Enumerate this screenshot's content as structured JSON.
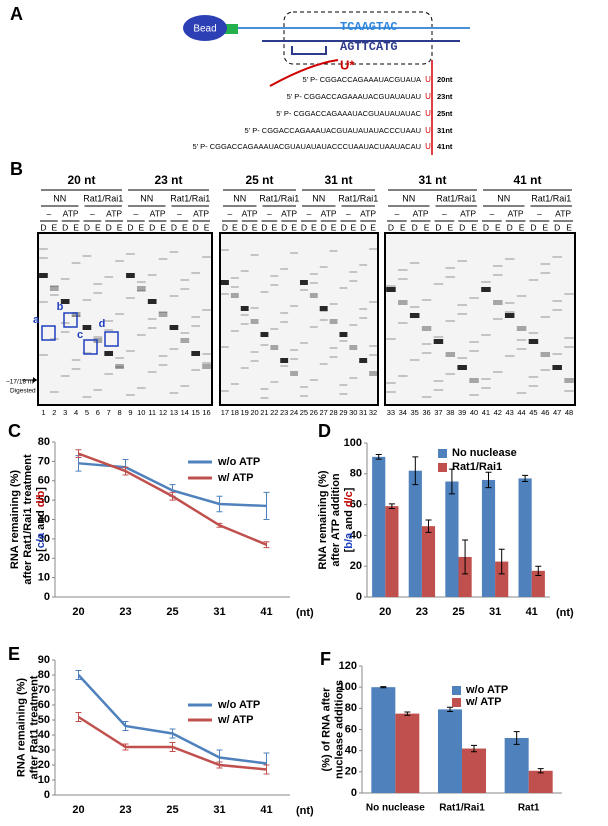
{
  "panel_a": {
    "label": "A",
    "bead": "Bead",
    "top_strand": "TCAAGTAC",
    "bottom_strand": "AGTTCATG",
    "label_nt": "U*",
    "sequences": [
      {
        "seq": "5' P- CGGACCAGAAAUACGUAUA",
        "end": "U",
        "length": "20nt"
      },
      {
        "seq": "5' P- CGGACCAGAAAUACGUAUAUAU",
        "end": "U",
        "length": "23nt"
      },
      {
        "seq": "5' P- CGGACCAGAAAUACGUAUAUAUAC",
        "end": "U",
        "length": "25nt"
      },
      {
        "seq": "5' P- CGGACCAGAAAUACGUAUAUAUACCCUAAU",
        "end": "U",
        "length": "31nt"
      },
      {
        "seq": "5' P- CGGACCAGAAAUACGUAUAUAUACCCUAAUACUAAUACAU",
        "end": "U",
        "length": "41nt"
      }
    ]
  },
  "panel_b": {
    "label": "B",
    "gels": [
      {
        "groups": [
          {
            "title": "20 nt",
            "subgroups": [
              {
                "name": "NN",
                "conditions": [
                  "–",
                  "ATP"
                ]
              },
              {
                "name": "Rat1/Rai1",
                "conditions": [
                  "–",
                  "ATP"
                ]
              }
            ]
          },
          {
            "title": "23 nt",
            "subgroups": [
              {
                "name": "NN",
                "conditions": [
                  "–",
                  "ATP"
                ]
              },
              {
                "name": "Rat1/Rai1",
                "conditions": [
                  "–",
                  "ATP"
                ]
              }
            ]
          }
        ]
      },
      {
        "groups": [
          {
            "title": "25 nt",
            "subgroups": [
              {
                "name": "NN",
                "conditions": [
                  "–",
                  "ATP"
                ]
              },
              {
                "name": "Rat1/Rai1",
                "conditions": [
                  "–",
                  "ATP"
                ]
              }
            ]
          },
          {
            "title": "31 nt",
            "subgroups": [
              {
                "name": "NN",
                "conditions": [
                  "–",
                  "ATP"
                ]
              },
              {
                "name": "Rat1/Rai1",
                "conditions": [
                  "–",
                  "ATP"
                ]
              }
            ]
          }
        ]
      },
      {
        "groups": [
          {
            "title": "31 nt",
            "subgroups": [
              {
                "name": "NN",
                "conditions": [
                  "–",
                  "ATP"
                ]
              },
              {
                "name": "Rat1/Rai1",
                "conditions": [
                  "–",
                  "ATP"
                ]
              }
            ]
          },
          {
            "title": "41 nt",
            "subgroups": [
              {
                "name": "NN",
                "conditions": [
                  "–",
                  "ATP"
                ]
              },
              {
                "name": "Rat1/Rai1",
                "conditions": [
                  "–",
                  "ATP"
                ]
              }
            ]
          }
        ]
      }
    ],
    "lane_letters": [
      "D",
      "E",
      "D",
      "E",
      "D",
      "E",
      "D",
      "E",
      "D",
      "E",
      "D",
      "E",
      "D",
      "E",
      "D",
      "E",
      "D",
      "E",
      "D",
      "E",
      "D",
      "E",
      "D",
      "E",
      "D",
      "E",
      "D",
      "E",
      "D",
      "E",
      "D",
      "E",
      "D",
      "E",
      "D",
      "E",
      "D",
      "E",
      "D",
      "E",
      "D",
      "E",
      "D",
      "E",
      "D",
      "E",
      "D",
      "E"
    ],
    "lane_numbers": [
      1,
      2,
      3,
      4,
      5,
      6,
      7,
      8,
      9,
      10,
      11,
      12,
      13,
      14,
      15,
      16,
      17,
      18,
      19,
      20,
      21,
      22,
      23,
      24,
      25,
      26,
      27,
      28,
      29,
      30,
      31,
      32,
      33,
      34,
      35,
      36,
      37,
      38,
      39,
      40,
      41,
      42,
      43,
      44,
      45,
      46,
      47,
      48
    ],
    "boxes": [
      "a",
      "b",
      "c",
      "d"
    ],
    "digested": [
      "~17/18 nt",
      "Digested"
    ]
  },
  "chart_data": [
    {
      "type": "line",
      "panel": "C",
      "categories": [
        "20",
        "23",
        "25",
        "31",
        "41"
      ],
      "xlabel": "(nt)",
      "ylabel": [
        "RNA remaining (%)",
        "after Rat1/Rai1 treatment",
        [
          {
            "text": "[",
            "color": "#000000"
          },
          {
            "text": "c/a",
            "color": "#1f3fbf"
          },
          {
            "text": " and ",
            "color": "#000000"
          },
          {
            "text": "d/b",
            "color": "#c00000"
          },
          {
            "text": "]",
            "color": "#000000"
          }
        ]
      ],
      "ylim": [
        0,
        80
      ],
      "yticks": [
        0,
        10,
        20,
        30,
        40,
        50,
        60,
        70,
        80
      ],
      "legend": "upper right",
      "series": [
        {
          "name": "w/o ATP",
          "color": "#4f81bd",
          "values": [
            69,
            67,
            55,
            48,
            47
          ],
          "errors": [
            4,
            4,
            3,
            4,
            7
          ]
        },
        {
          "name": "w/ ATP",
          "color": "#c0504d",
          "values": [
            74,
            65,
            52,
            37,
            27
          ],
          "errors": [
            2,
            2,
            2,
            1,
            1.5
          ]
        }
      ]
    },
    {
      "type": "bar",
      "panel": "D",
      "categories": [
        "20",
        "23",
        "25",
        "31",
        "41"
      ],
      "xlabel": "(nt)",
      "ylabel": [
        "RNA remaining (%)",
        "after ATP addition",
        [
          {
            "text": "[",
            "color": "#000000"
          },
          {
            "text": "b/a",
            "color": "#1f3fbf"
          },
          {
            "text": " and ",
            "color": "#000000"
          },
          {
            "text": "d/c",
            "color": "#c00000"
          },
          {
            "text": "]",
            "color": "#000000"
          }
        ]
      ],
      "ylim": [
        0,
        100
      ],
      "yticks": [
        0,
        20,
        40,
        60,
        80,
        100
      ],
      "legend": "upper right",
      "series": [
        {
          "name": "No nuclease",
          "color": "#4f81bd",
          "values": [
            91,
            82,
            75,
            76,
            77
          ],
          "errors": [
            1.5,
            9,
            8,
            5,
            2
          ]
        },
        {
          "name": "Rat1/Rai1",
          "color": "#c0504d",
          "values": [
            59,
            46,
            26,
            23,
            17
          ],
          "errors": [
            1.5,
            4,
            11,
            8,
            3
          ]
        }
      ]
    },
    {
      "type": "line",
      "panel": "E",
      "categories": [
        "20",
        "23",
        "25",
        "31",
        "41"
      ],
      "xlabel": "(nt)",
      "ylabel": [
        "RNA remaining (%)",
        "after Rat1 treatment"
      ],
      "ylim": [
        0,
        90
      ],
      "yticks": [
        0,
        10,
        20,
        30,
        40,
        50,
        60,
        70,
        80,
        90
      ],
      "legend": "upper right",
      "series": [
        {
          "name": "w/o ATP",
          "color": "#4f81bd",
          "values": [
            80,
            46,
            41,
            25,
            21
          ],
          "errors": [
            3,
            3,
            3,
            5,
            7
          ]
        },
        {
          "name": "w/ ATP",
          "color": "#c0504d",
          "values": [
            52,
            32,
            32,
            20,
            17
          ],
          "errors": [
            3,
            2,
            3,
            2,
            3
          ]
        }
      ]
    },
    {
      "type": "bar",
      "panel": "F",
      "categories": [
        "No nuclease",
        "Rat1/Rai1",
        "Rat1"
      ],
      "ylabel": [
        "(%) of RNA after",
        "nuclease additions"
      ],
      "ylim": [
        0,
        120
      ],
      "yticks": [
        0,
        20,
        40,
        60,
        80,
        100,
        120
      ],
      "legend": "upper right",
      "series": [
        {
          "name": "w/o ATP",
          "color": "#4f81bd",
          "values": [
            100,
            79,
            52
          ],
          "errors": [
            0.5,
            2,
            6
          ]
        },
        {
          "name": "w/ ATP",
          "color": "#c0504d",
          "values": [
            75,
            42,
            21
          ],
          "errors": [
            1.5,
            3,
            2
          ]
        }
      ]
    }
  ]
}
